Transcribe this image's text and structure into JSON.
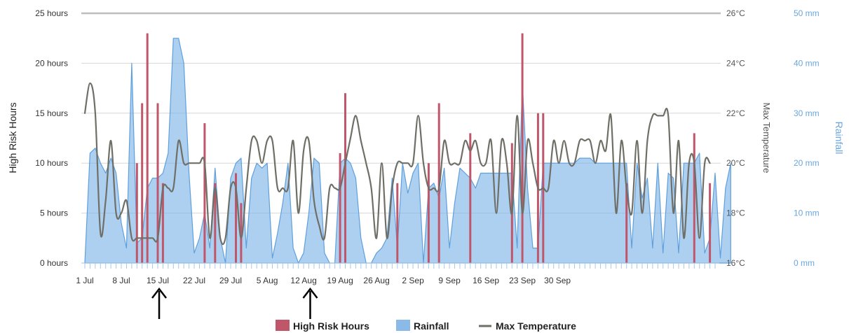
{
  "chart_data": {
    "type": "bar+area+line",
    "x_axis": {
      "start": "1 Jul",
      "end": "30 Sep",
      "tick_labels": [
        "1 Jul",
        "8 Jul",
        "15 Jul",
        "22 Jul",
        "29 Jul",
        "5 Aug",
        "12 Aug",
        "19 Aug",
        "26 Aug",
        "2 Sep",
        "9 Sep",
        "16 Sep",
        "23 Sep",
        "30 Sep"
      ]
    },
    "y_left": {
      "title": "High Risk Hours",
      "range": [
        0,
        25
      ],
      "tick_labels": [
        "0 hours",
        "5 hours",
        "10 hours",
        "15 hours",
        "20 hours",
        "25 hours"
      ]
    },
    "y_right_temperature": {
      "title": "Max Temperature",
      "range": [
        16,
        26
      ],
      "tick_labels": [
        "16°C",
        "18°C",
        "20°C",
        "22°C",
        "24°C",
        "26°C"
      ]
    },
    "y_right_rainfall": {
      "title": "Rainfall",
      "range": [
        0,
        50
      ],
      "tick_labels": [
        "0 mm",
        "10 mm",
        "20 mm",
        "30 mm",
        "40 mm",
        "50 mm"
      ]
    },
    "grid": true,
    "legend_position": "bottom-center",
    "series": [
      {
        "name": "High Risk Hours",
        "kind": "bar",
        "axis": "left",
        "color": "#c0566a",
        "points": [
          [
            10,
            10
          ],
          [
            11,
            16
          ],
          [
            12,
            23
          ],
          [
            14,
            16
          ],
          [
            15,
            8
          ],
          [
            23,
            14
          ],
          [
            25,
            8
          ],
          [
            29,
            9
          ],
          [
            30,
            6
          ],
          [
            49,
            11
          ],
          [
            50,
            17
          ],
          [
            60,
            8
          ],
          [
            66,
            10
          ],
          [
            68,
            16
          ],
          [
            74,
            13
          ],
          [
            82,
            12
          ],
          [
            84,
            23
          ],
          [
            87,
            15
          ],
          [
            88,
            15
          ],
          [
            104,
            8
          ],
          [
            117,
            13
          ],
          [
            120,
            8
          ]
        ]
      },
      {
        "name": "Rainfall",
        "kind": "area",
        "axis": "rainfall",
        "color": "#7db3e6",
        "points": [
          [
            0,
            0
          ],
          [
            1,
            22
          ],
          [
            2,
            23
          ],
          [
            3,
            20
          ],
          [
            4,
            18
          ],
          [
            5,
            21
          ],
          [
            6,
            18
          ],
          [
            7,
            8
          ],
          [
            8,
            3
          ],
          [
            9,
            40
          ],
          [
            10,
            4
          ],
          [
            11,
            5
          ],
          [
            12,
            15
          ],
          [
            13,
            17
          ],
          [
            14,
            17
          ],
          [
            15,
            18
          ],
          [
            16,
            22
          ],
          [
            17,
            45
          ],
          [
            18,
            45
          ],
          [
            19,
            40
          ],
          [
            20,
            18
          ],
          [
            21,
            2
          ],
          [
            22,
            5
          ],
          [
            23,
            10
          ],
          [
            24,
            3
          ],
          [
            25,
            19
          ],
          [
            26,
            5
          ],
          [
            27,
            0
          ],
          [
            28,
            17
          ],
          [
            29,
            20
          ],
          [
            30,
            21
          ],
          [
            31,
            3
          ],
          [
            32,
            17
          ],
          [
            33,
            20
          ],
          [
            34,
            19
          ],
          [
            35,
            20
          ],
          [
            36,
            1
          ],
          [
            37,
            6
          ],
          [
            38,
            12
          ],
          [
            39,
            20
          ],
          [
            40,
            3
          ],
          [
            41,
            0
          ],
          [
            42,
            2
          ],
          [
            43,
            10
          ],
          [
            44,
            21
          ],
          [
            45,
            20
          ],
          [
            46,
            2
          ],
          [
            47,
            0
          ],
          [
            48,
            0
          ],
          [
            49,
            20
          ],
          [
            50,
            21
          ],
          [
            51,
            20
          ],
          [
            52,
            17
          ],
          [
            53,
            5
          ],
          [
            54,
            0
          ],
          [
            55,
            0
          ],
          [
            56,
            2
          ],
          [
            57,
            3
          ],
          [
            58,
            5
          ],
          [
            59,
            17
          ],
          [
            60,
            3
          ],
          [
            61,
            20
          ],
          [
            62,
            14
          ],
          [
            63,
            18
          ],
          [
            64,
            20
          ],
          [
            65,
            0
          ],
          [
            66,
            15
          ],
          [
            67,
            16
          ],
          [
            68,
            13
          ],
          [
            69,
            19
          ],
          [
            70,
            3
          ],
          [
            71,
            12
          ],
          [
            72,
            19
          ],
          [
            73,
            18
          ],
          [
            74,
            17
          ],
          [
            75,
            15
          ],
          [
            76,
            18
          ],
          [
            77,
            18
          ],
          [
            78,
            18
          ],
          [
            79,
            18
          ],
          [
            80,
            18
          ],
          [
            81,
            18
          ],
          [
            82,
            18
          ],
          [
            83,
            3
          ],
          [
            84,
            36
          ],
          [
            85,
            15
          ],
          [
            86,
            3
          ],
          [
            87,
            3
          ],
          [
            88,
            20
          ],
          [
            89,
            20
          ],
          [
            90,
            20
          ],
          [
            91,
            20
          ],
          [
            92,
            20
          ],
          [
            93,
            20
          ],
          [
            94,
            20
          ],
          [
            95,
            21
          ],
          [
            96,
            21
          ],
          [
            97,
            21
          ],
          [
            98,
            20
          ],
          [
            99,
            20
          ],
          [
            100,
            20
          ],
          [
            101,
            20
          ],
          [
            102,
            20
          ],
          [
            103,
            20
          ],
          [
            104,
            20
          ],
          [
            105,
            3
          ],
          [
            106,
            20
          ],
          [
            107,
            13
          ],
          [
            108,
            17
          ],
          [
            109,
            3
          ],
          [
            110,
            20
          ],
          [
            111,
            2
          ],
          [
            112,
            18
          ],
          [
            113,
            17
          ],
          [
            114,
            2
          ],
          [
            115,
            20
          ],
          [
            116,
            20
          ],
          [
            117,
            20
          ],
          [
            118,
            22
          ],
          [
            119,
            2
          ],
          [
            120,
            5
          ],
          [
            121,
            18
          ],
          [
            122,
            1
          ],
          [
            123,
            15
          ],
          [
            124,
            20
          ]
        ]
      },
      {
        "name": "Max Temperature",
        "kind": "line",
        "axis": "temperature",
        "color": "#6f6f67",
        "points": [
          [
            0,
            22
          ],
          [
            1,
            23.2
          ],
          [
            2,
            22
          ],
          [
            3,
            17.2
          ],
          [
            4,
            18.5
          ],
          [
            5,
            20.9
          ],
          [
            6,
            18
          ],
          [
            7,
            18
          ],
          [
            8,
            18.5
          ],
          [
            9,
            17
          ],
          [
            10,
            17
          ],
          [
            11,
            17
          ],
          [
            12,
            17
          ],
          [
            13,
            17
          ],
          [
            14,
            17
          ],
          [
            15,
            19
          ],
          [
            16,
            19
          ],
          [
            17,
            19
          ],
          [
            18,
            20.9
          ],
          [
            19,
            20
          ],
          [
            20,
            20
          ],
          [
            21,
            20
          ],
          [
            22,
            20
          ],
          [
            23,
            20
          ],
          [
            24,
            17
          ],
          [
            25,
            19
          ],
          [
            26,
            17
          ],
          [
            27,
            17
          ],
          [
            28,
            19
          ],
          [
            29,
            19
          ],
          [
            30,
            17
          ],
          [
            31,
            19
          ],
          [
            32,
            20.9
          ],
          [
            33,
            20.9
          ],
          [
            34,
            20
          ],
          [
            35,
            20.9
          ],
          [
            36,
            20.9
          ],
          [
            37,
            19
          ],
          [
            38,
            19
          ],
          [
            39,
            19
          ],
          [
            40,
            20.9
          ],
          [
            41,
            18
          ],
          [
            42,
            20.5
          ],
          [
            43,
            20.9
          ],
          [
            44,
            18.5
          ],
          [
            45,
            17.5
          ],
          [
            46,
            17
          ],
          [
            47,
            19
          ],
          [
            48,
            19
          ],
          [
            49,
            19
          ],
          [
            50,
            20
          ],
          [
            51,
            21
          ],
          [
            52,
            21.9
          ],
          [
            53,
            20.9
          ],
          [
            54,
            20
          ],
          [
            55,
            19
          ],
          [
            56,
            17
          ],
          [
            57,
            20
          ],
          [
            58,
            17
          ],
          [
            59,
            19
          ],
          [
            60,
            20
          ],
          [
            61,
            20
          ],
          [
            62,
            20
          ],
          [
            63,
            20
          ],
          [
            64,
            21.9
          ],
          [
            65,
            20
          ],
          [
            66,
            19
          ],
          [
            67,
            19
          ],
          [
            68,
            19
          ],
          [
            69,
            20.9
          ],
          [
            70,
            20
          ],
          [
            71,
            20
          ],
          [
            72,
            20
          ],
          [
            73,
            20.9
          ],
          [
            74,
            20.5
          ],
          [
            75,
            20.9
          ],
          [
            76,
            20
          ],
          [
            77,
            20
          ],
          [
            78,
            20.9
          ],
          [
            79,
            18
          ],
          [
            80,
            20.9
          ],
          [
            81,
            20
          ],
          [
            82,
            18
          ],
          [
            83,
            21.9
          ],
          [
            84,
            18
          ],
          [
            85,
            20.9
          ],
          [
            86,
            20
          ],
          [
            87,
            19
          ],
          [
            88,
            19
          ],
          [
            89,
            19
          ],
          [
            90,
            20.9
          ],
          [
            91,
            20
          ],
          [
            92,
            20.9
          ],
          [
            93,
            20
          ],
          [
            94,
            20
          ],
          [
            95,
            20.9
          ],
          [
            96,
            20.9
          ],
          [
            97,
            20.9
          ],
          [
            98,
            20
          ],
          [
            99,
            20.9
          ],
          [
            100,
            20.5
          ],
          [
            101,
            21.9
          ],
          [
            102,
            18
          ],
          [
            103,
            20.9
          ],
          [
            104,
            19
          ],
          [
            105,
            18
          ],
          [
            106,
            20.9
          ],
          [
            107,
            18
          ],
          [
            108,
            20.9
          ],
          [
            109,
            21.9
          ],
          [
            110,
            21.9
          ],
          [
            111,
            21.9
          ],
          [
            112,
            21.9
          ],
          [
            113,
            18
          ],
          [
            114,
            20.9
          ],
          [
            115,
            17
          ],
          [
            116,
            20
          ],
          [
            117,
            20
          ],
          [
            118,
            17
          ],
          [
            119,
            20
          ],
          [
            120,
            20
          ]
        ]
      }
    ],
    "legend": [
      {
        "label": "High Risk Hours",
        "swatch": "bar",
        "color": "#c0566a"
      },
      {
        "label": "Rainfall",
        "swatch": "area",
        "color": "#7db3e6"
      },
      {
        "label": "Max Temperature",
        "swatch": "line",
        "color": "#6f6f67"
      }
    ],
    "annotations": [
      {
        "kind": "arrow-up",
        "x": 14
      },
      {
        "kind": "arrow-up",
        "x": 43
      }
    ]
  }
}
